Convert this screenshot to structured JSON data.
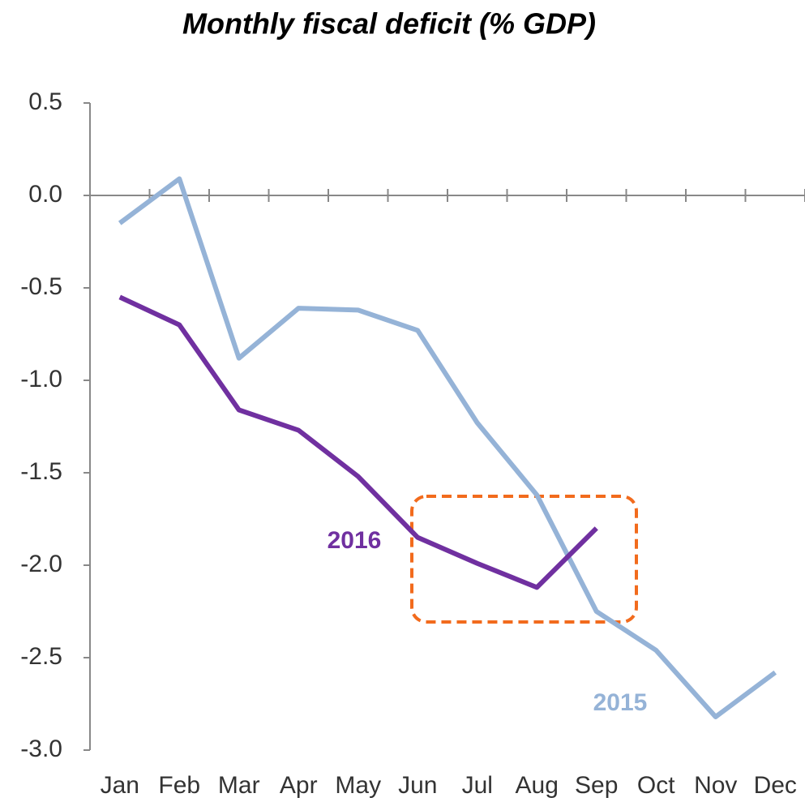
{
  "chart_data": {
    "type": "line",
    "title": "Monthly fiscal deficit (% GDP)",
    "categories": [
      "Jan",
      "Feb",
      "Mar",
      "Apr",
      "May",
      "Jun",
      "Jul",
      "Aug",
      "Sep",
      "Oct",
      "Nov",
      "Dec"
    ],
    "series": [
      {
        "name": "2015",
        "color": "#95b3d7",
        "values": [
          -0.15,
          0.09,
          -0.88,
          -0.61,
          -0.62,
          -0.73,
          -1.23,
          -1.62,
          -2.25,
          -2.46,
          -2.82,
          -2.58
        ]
      },
      {
        "name": "2016",
        "color": "#7030a0",
        "values": [
          -0.55,
          -0.7,
          -1.16,
          -1.27,
          -1.52,
          -1.85,
          -1.99,
          -2.12,
          -1.8,
          null,
          null,
          null
        ]
      }
    ],
    "ylim": [
      -3.0,
      0.5
    ],
    "yticks": [
      0.5,
      {
        "value": 0,
        "label": "0.0"
      },
      -0.5,
      {
        "value": -1,
        "label": "-1.0"
      },
      -1.5,
      {
        "value": -2,
        "label": "-2.0"
      },
      -2.5,
      {
        "value": -3,
        "label": "-3.0"
      }
    ],
    "grid": false
  }
}
